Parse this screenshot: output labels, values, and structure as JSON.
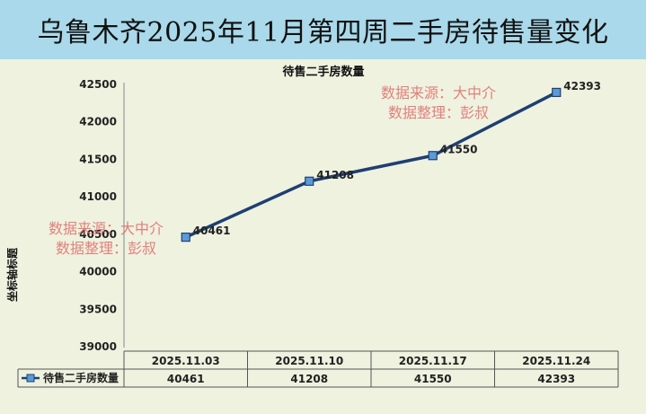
{
  "banner": {
    "title": "乌鲁木齐2025年11月第四周二手房待售量变化"
  },
  "chart_data": {
    "type": "line",
    "title": "待售二手房数量",
    "ylabel": "坐标轴标题",
    "categories": [
      "2025.11.03",
      "2025.11.10",
      "2025.11.17",
      "2025.11.24"
    ],
    "series": [
      {
        "name": "待售二手房数量",
        "values": [
          40461,
          41208,
          41550,
          42393
        ],
        "color": "#1f3f73"
      }
    ],
    "ylim": [
      39000,
      42500
    ],
    "yticks": [
      39000,
      39500,
      40000,
      40500,
      41000,
      41500,
      42000,
      42500
    ],
    "grid": false,
    "legend": "data-table-left",
    "data_table": true
  },
  "watermarks": [
    {
      "line1": "数据来源：大中介",
      "line2": "数据整理：彭叔"
    },
    {
      "line1": "数据来源：大中介",
      "line2": "数据整理：彭叔"
    }
  ],
  "colors": {
    "banner": "#a9d9ea",
    "background": "#eef2df",
    "line": "#1f3f73",
    "marker": "#5b9bd5",
    "watermark": "#e06b6b"
  }
}
